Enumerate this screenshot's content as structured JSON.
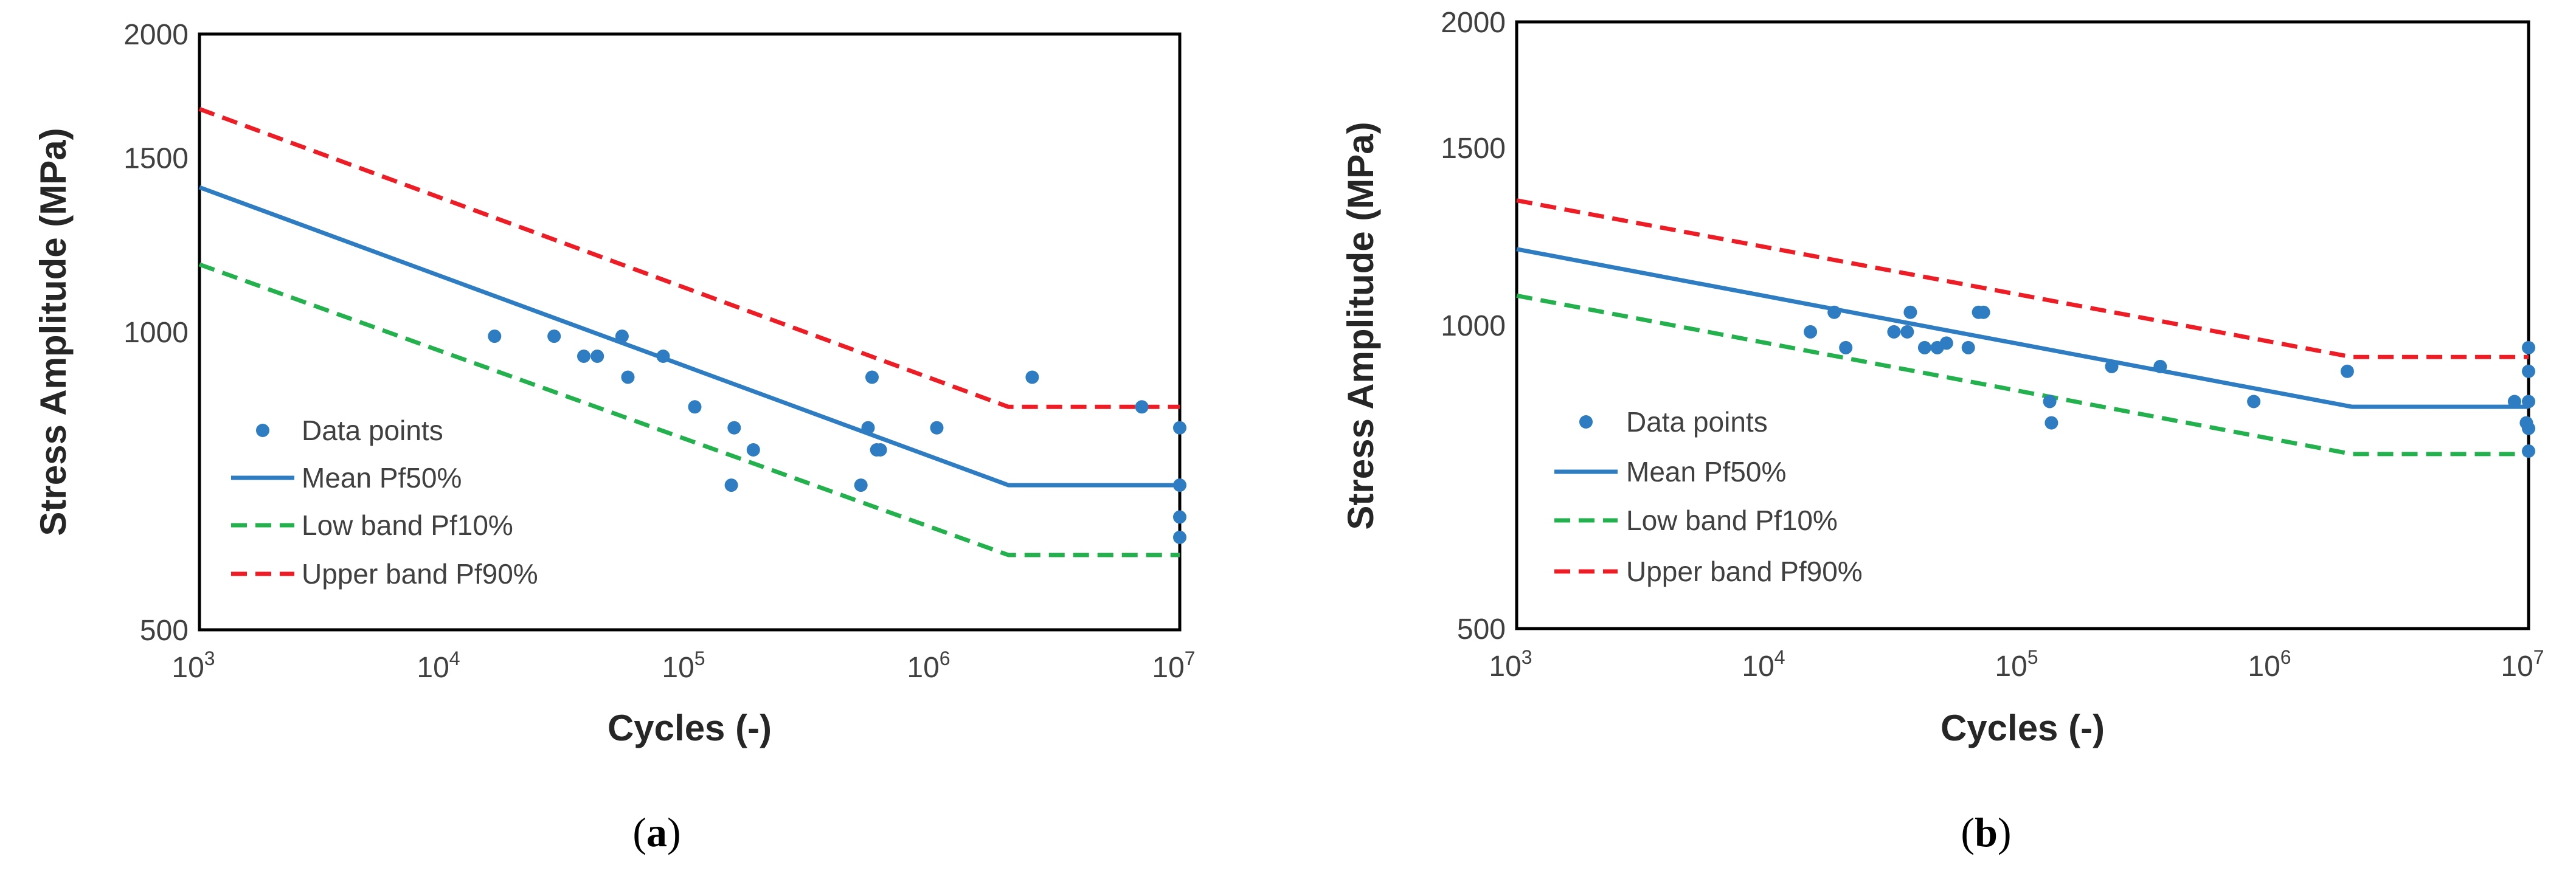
{
  "chart_data": [
    {
      "type": "scatter",
      "title": "",
      "caption_open": "(",
      "caption": "a",
      "caption_close": ")",
      "xlabel": "Cycles (-)",
      "ylabel": "Stress Amplitude (MPa)",
      "xscale": "log",
      "yscale": "log",
      "xlim": [
        1000,
        10000000
      ],
      "ylim": [
        500,
        2000
      ],
      "xticks": [
        1000,
        10000,
        100000,
        1000000,
        10000000
      ],
      "xtick_labels": [
        {
          "base": "10",
          "exp": "3"
        },
        {
          "base": "10",
          "exp": "4"
        },
        {
          "base": "10",
          "exp": "5"
        },
        {
          "base": "10",
          "exp": "6"
        },
        {
          "base": "10",
          "exp": "7"
        }
      ],
      "yticks": [
        500,
        1000,
        1500,
        2000
      ],
      "ytick_labels": [
        "500",
        "1000",
        "1500",
        "2000"
      ],
      "legend_position": "left-lower",
      "legend": [
        "Data points",
        "Mean Pf50%",
        "Low band Pf10%",
        "Upper band Pf90%"
      ],
      "series": [
        {
          "name": "Data points",
          "kind": "scatter",
          "color": "#2e7cc1",
          "x": [
            16000,
            28000,
            37000,
            42000,
            53000,
            56000,
            78000,
            105000,
            148000,
            152000,
            182000,
            500000,
            535000,
            555000,
            580000,
            600000,
            1020000,
            2500000,
            7000000,
            10000000,
            10000000,
            10000000,
            10000000
          ],
          "y": [
            990,
            990,
            945,
            945,
            990,
            900,
            945,
            840,
            700,
            800,
            760,
            700,
            800,
            900,
            760,
            760,
            800,
            900,
            840,
            800,
            700,
            650,
            620
          ]
        },
        {
          "name": "Mean Pf50%",
          "kind": "line",
          "style": "solid",
          "color": "#2e7cc1",
          "x": [
            1000,
            2000000,
            10000000
          ],
          "y": [
            1400,
            700,
            700
          ]
        },
        {
          "name": "Low band Pf10%",
          "kind": "line",
          "style": "dashed",
          "color": "#22b14c",
          "x": [
            1000,
            2000000,
            10000000
          ],
          "y": [
            1170,
            595,
            595
          ]
        },
        {
          "name": "Upper band Pf90%",
          "kind": "line",
          "style": "dashed",
          "color": "#ee1c24",
          "x": [
            1000,
            2000000,
            10000000
          ],
          "y": [
            1680,
            840,
            840
          ]
        }
      ]
    },
    {
      "type": "scatter",
      "title": "",
      "caption_open": "(",
      "caption": "b",
      "caption_close": ")",
      "xlabel": "Cycles (-)",
      "ylabel": "Stress Amplitude (MPa)",
      "xscale": "log",
      "yscale": "log",
      "xlim": [
        1000,
        10000000
      ],
      "ylim": [
        500,
        2000
      ],
      "xticks": [
        1000,
        10000,
        100000,
        1000000,
        10000000
      ],
      "xtick_labels": [
        {
          "base": "10",
          "exp": "3"
        },
        {
          "base": "10",
          "exp": "4"
        },
        {
          "base": "10",
          "exp": "5"
        },
        {
          "base": "10",
          "exp": "6"
        },
        {
          "base": "10",
          "exp": "7"
        }
      ],
      "yticks": [
        500,
        1000,
        1500,
        2000
      ],
      "ytick_labels": [
        "500",
        "1000",
        "1500",
        "2000"
      ],
      "legend_position": "left-lower",
      "legend": [
        "Data points",
        "Mean Pf50%",
        "Low band Pf10%",
        "Upper band Pf90%"
      ],
      "series": [
        {
          "name": "Data points",
          "kind": "scatter",
          "color": "#2e7cc1",
          "x": [
            14500,
            18000,
            20000,
            31000,
            35000,
            36000,
            41000,
            46000,
            50000,
            61000,
            67000,
            70000,
            128000,
            130000,
            225000,
            350000,
            820000,
            1920000,
            8800000,
            9800000,
            10000000,
            10000000,
            10000000,
            10000000,
            10000000
          ],
          "y": [
            985,
            1030,
            950,
            985,
            985,
            1030,
            950,
            950,
            960,
            950,
            1030,
            1030,
            840,
            800,
            910,
            910,
            840,
            900,
            840,
            800,
            790,
            840,
            900,
            950,
            750
          ]
        },
        {
          "name": "Mean Pf50%",
          "kind": "line",
          "style": "solid",
          "color": "#2e7cc1",
          "x": [
            1000,
            2000000,
            10000000
          ],
          "y": [
            1190,
            830,
            830
          ]
        },
        {
          "name": "Low band Pf10%",
          "kind": "line",
          "style": "dashed",
          "color": "#22b14c",
          "x": [
            1000,
            2000000,
            10000000
          ],
          "y": [
            1070,
            745,
            745
          ]
        },
        {
          "name": "Upper band Pf90%",
          "kind": "line",
          "style": "dashed",
          "color": "#ee1c24",
          "x": [
            1000,
            2000000,
            10000000
          ],
          "y": [
            1330,
            930,
            930
          ]
        }
      ]
    }
  ]
}
